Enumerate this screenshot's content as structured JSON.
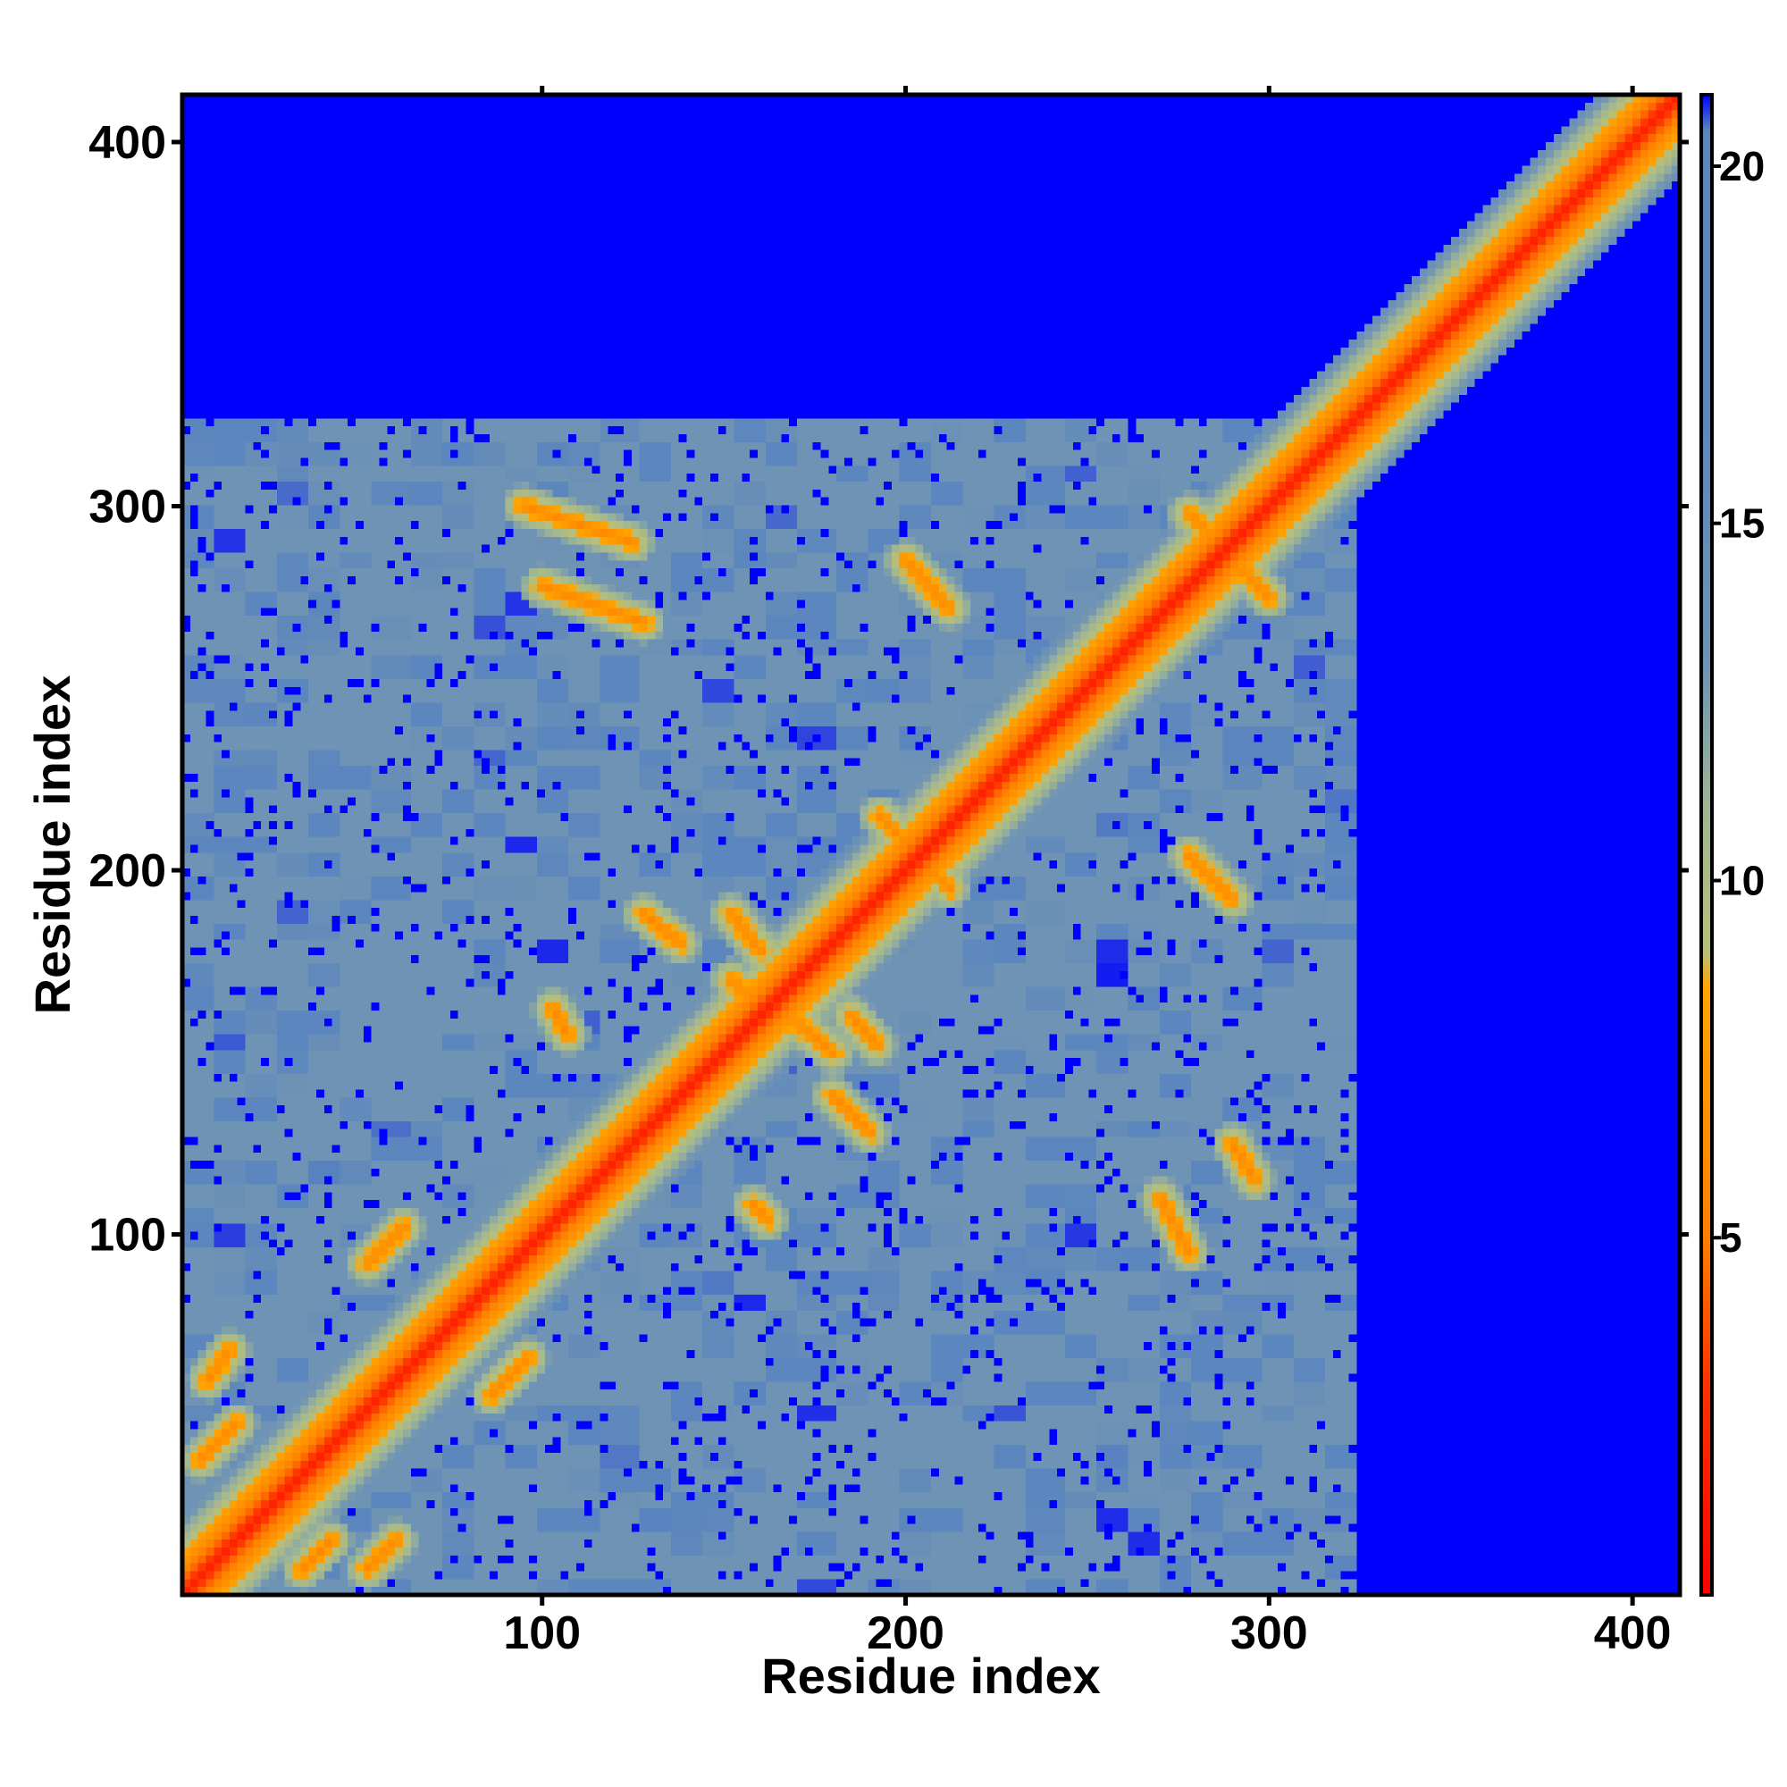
{
  "chart_data": {
    "type": "heatmap",
    "title": "",
    "xlabel": "Residue index",
    "ylabel": "Residue index",
    "xlim": [
      1,
      413
    ],
    "ylim": [
      1,
      413
    ],
    "x_ticks": [
      100,
      200,
      300,
      400
    ],
    "y_ticks": [
      100,
      200,
      300,
      400
    ],
    "grid": false,
    "structured_region": [
      1,
      325
    ],
    "colorbar": {
      "range": [
        0,
        21
      ],
      "ticks": [
        5,
        10,
        15,
        20
      ],
      "colors": {
        "near": "#ff0000",
        "contact": "#ffa500",
        "medium": "#a9b98a",
        "far": "#5b86be",
        "background": "#0000ff"
      },
      "stops": [
        {
          "value": 0,
          "color": "#ff0000"
        },
        {
          "value": 3,
          "color": "#ff3300"
        },
        {
          "value": 5,
          "color": "#ff7f00"
        },
        {
          "value": 8.5,
          "color": "#ffa500"
        },
        {
          "value": 9,
          "color": "#b9bf78"
        },
        {
          "value": 11,
          "color": "#9fb694"
        },
        {
          "value": 13,
          "color": "#6f93b4"
        },
        {
          "value": 17,
          "color": "#5b86be"
        },
        {
          "value": 20.5,
          "color": "#5b86be"
        },
        {
          "value": 21,
          "color": "#0000ff"
        }
      ]
    },
    "contact_segments": [
      {
        "from": [
          8,
          60
        ],
        "to": [
          14,
          68
        ]
      },
      {
        "from": [
          6,
          38
        ],
        "to": [
          16,
          48
        ]
      },
      {
        "from": [
          34,
          8
        ],
        "to": [
          42,
          16
        ]
      },
      {
        "from": [
          52,
          8
        ],
        "to": [
          60,
          16
        ]
      },
      {
        "from": [
          52,
          92
        ],
        "to": [
          62,
          102
        ]
      },
      {
        "from": [
          86,
          56
        ],
        "to": [
          96,
          66
        ]
      },
      {
        "from": [
          95,
          300
        ],
        "to": [
          125,
          290
        ]
      },
      {
        "from": [
          100,
          278
        ],
        "to": [
          128,
          268
        ]
      },
      {
        "from": [
          128,
          188
        ],
        "to": [
          138,
          180
        ]
      },
      {
        "from": [
          152,
          188
        ],
        "to": [
          160,
          178
        ]
      },
      {
        "from": [
          152,
          170
        ],
        "to": [
          162,
          160
        ]
      },
      {
        "from": [
          170,
          158
        ],
        "to": [
          180,
          150
        ]
      },
      {
        "from": [
          180,
          138
        ],
        "to": [
          190,
          128
        ]
      },
      {
        "from": [
          185,
          160
        ],
        "to": [
          192,
          152
        ]
      },
      {
        "from": [
          200,
          285
        ],
        "to": [
          212,
          272
        ]
      },
      {
        "from": [
          193,
          215
        ],
        "to": [
          212,
          195
        ]
      },
      {
        "from": [
          270,
          110
        ],
        "to": [
          278,
          95
        ]
      },
      {
        "from": [
          278,
          204
        ],
        "to": [
          290,
          192
        ]
      },
      {
        "from": [
          278,
          298
        ],
        "to": [
          300,
          275
        ]
      },
      {
        "from": [
          270,
          275
        ],
        "to": [
          290,
          295
        ]
      },
      {
        "from": [
          290,
          125
        ],
        "to": [
          296,
          115
        ]
      },
      {
        "from": [
          103,
          162
        ],
        "to": [
          107,
          155
        ]
      },
      {
        "from": [
          158,
          108
        ],
        "to": [
          162,
          104
        ]
      }
    ]
  }
}
